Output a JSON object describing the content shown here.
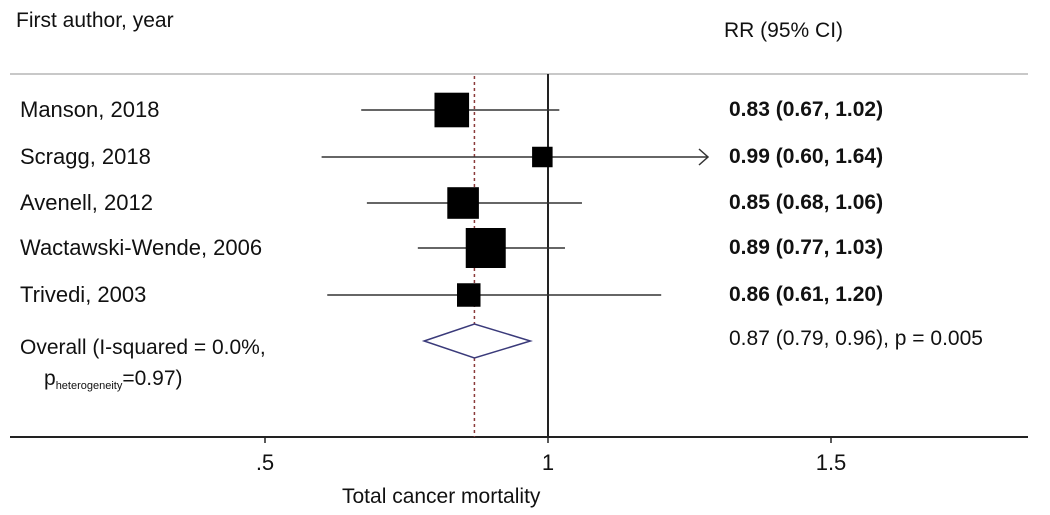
{
  "chart_data": {
    "type": "forest",
    "headers": {
      "left": "First author, year",
      "right": "RR (95% CI)"
    },
    "studies": [
      {
        "label": "Manson, 2018",
        "rr": 0.83,
        "lo": 0.67,
        "hi": 1.02,
        "text": "0.83 (0.67, 1.02)",
        "weight": 0.82
      },
      {
        "label": "Scragg, 2018",
        "rr": 0.99,
        "lo": 0.6,
        "hi": 1.64,
        "text": "0.99 (0.60, 1.64)",
        "weight": 0.35,
        "arrow": true
      },
      {
        "label": "Avenell, 2012",
        "rr": 0.85,
        "lo": 0.68,
        "hi": 1.06,
        "text": "0.85 (0.68, 1.06)",
        "weight": 0.72
      },
      {
        "label": "Wactawski-Wende, 2006",
        "rr": 0.89,
        "lo": 0.77,
        "hi": 1.03,
        "text": "0.89 (0.77, 1.03)",
        "weight": 1.0
      },
      {
        "label": "Trivedi, 2003",
        "rr": 0.86,
        "lo": 0.61,
        "hi": 1.2,
        "text": "0.86 (0.61, 1.20)",
        "weight": 0.45
      }
    ],
    "overall": {
      "label": "Overall  (I-squared = 0.0%,",
      "p_label_prefix": "p",
      "p_label_sub": "heterogeneity",
      "p_label_suffix": "=0.97)",
      "rr": 0.87,
      "lo": 0.79,
      "hi": 0.96,
      "text": "0.87 (0.79, 0.96), p = 0.005"
    },
    "x_axis": {
      "ticks": [
        0.5,
        1,
        1.5
      ],
      "tick_labels": [
        ".5",
        "1",
        "1.5"
      ],
      "label": "Total cancer mortality",
      "range": [
        0.0,
        1.8
      ]
    },
    "reference_line": 1,
    "colors": {
      "diamond": "#3a3a7a",
      "overall_line": "#8b3a3a",
      "separator": "#c8c8c8",
      "box": "#000000"
    }
  }
}
